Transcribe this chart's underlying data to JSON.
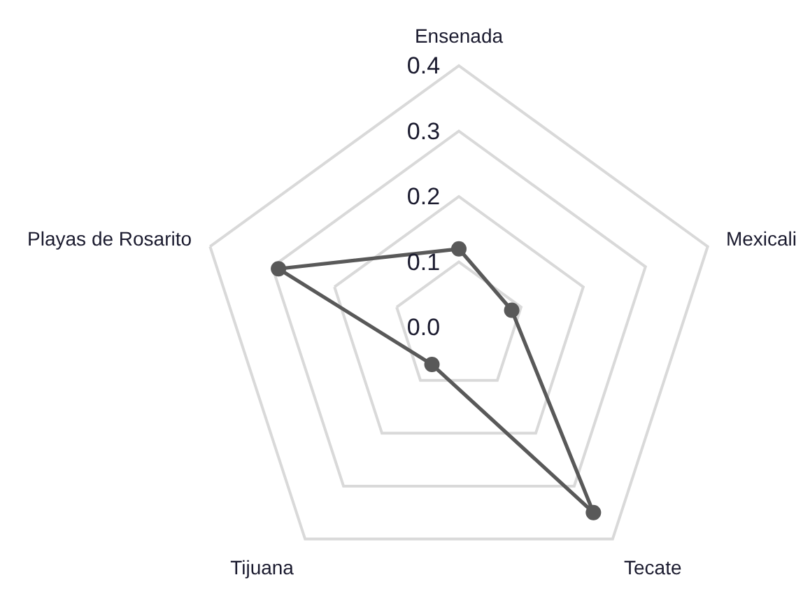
{
  "chart_data": {
    "type": "radar",
    "categories": [
      "Ensenada",
      "Mexicali",
      "Tecate",
      "Tijuana",
      "Playas de Rosarito"
    ],
    "series": [
      {
        "color": "#595959",
        "values": [
          0.12,
          0.085,
          0.35,
          0.07,
          0.29
        ]
      }
    ],
    "ylim": [
      0,
      0.4
    ],
    "yticks": [
      {
        "value": 0,
        "label": "0.0"
      },
      0.1,
      0.2,
      0.3,
      0.4
    ],
    "grid": true,
    "marker": "circle",
    "line_style": "solid"
  }
}
